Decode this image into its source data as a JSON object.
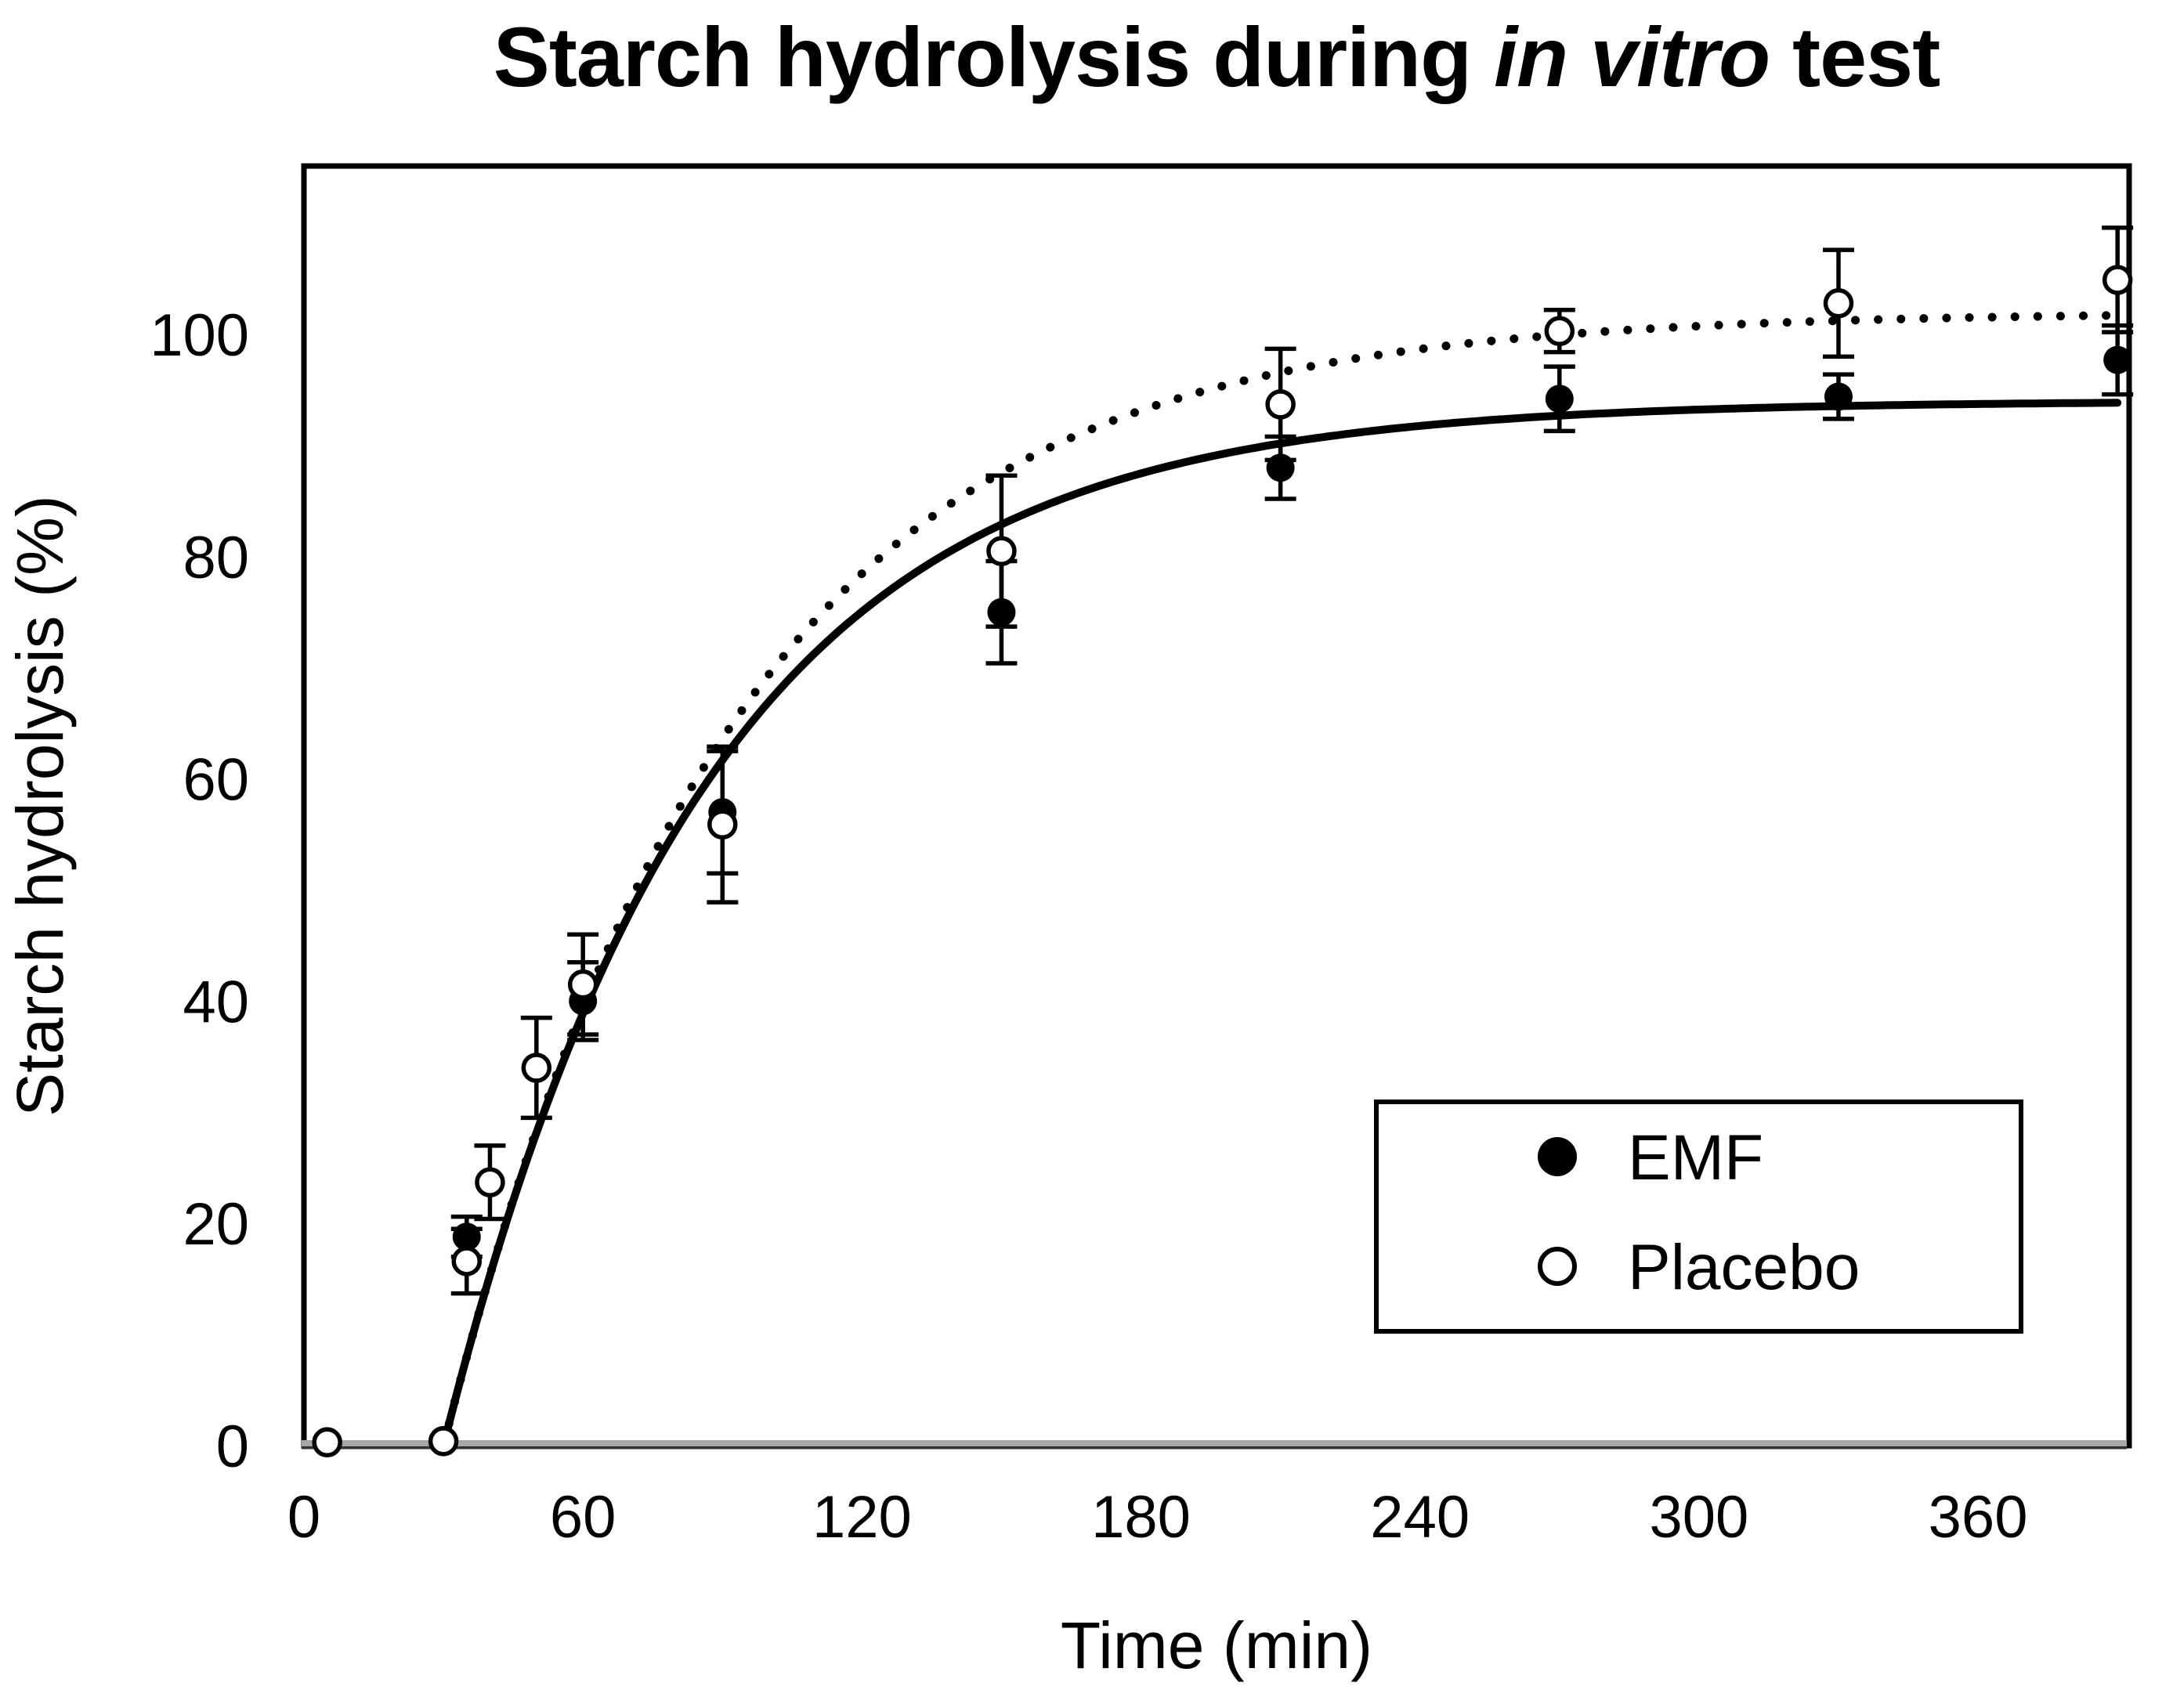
{
  "chart_data": {
    "type": "scatter",
    "title_parts": {
      "pre": "Starch hydrolysis during ",
      "italic": "in vitro",
      "post": " test"
    },
    "xlabel": "Time (min)",
    "ylabel": "Starch hydrolysis (%)",
    "xlim": [
      0,
      392.5
    ],
    "ylim": [
      0,
      115.15
    ],
    "xticks": [
      0,
      60,
      120,
      180,
      240,
      300,
      360
    ],
    "yticks": [
      0,
      20,
      40,
      60,
      80,
      100
    ],
    "grid": false,
    "legend_position": "lower right",
    "x_minutes": [
      5,
      30,
      35,
      40,
      50,
      60,
      90,
      150,
      210,
      270,
      330,
      390
    ],
    "series": [
      {
        "name": "EMF",
        "marker": "filled-circle",
        "line_style": "solid",
        "y": [
          0.4,
          0.5,
          18.8,
          23.7,
          34,
          40,
          57,
          75,
          88,
          94.2,
          94.4,
          97.7
        ],
        "yerr": [
          0,
          0,
          1.8,
          0,
          0,
          3.5,
          5.5,
          4.6,
          2.8,
          2.9,
          2,
          3.1
        ],
        "fit": {
          "model": "C*(1-exp(-k*(t-t0)))",
          "C": 94,
          "k": 0.0178,
          "t0": 30,
          "t_end": 391
        }
      },
      {
        "name": "Placebo",
        "marker": "open-circle",
        "line_style": "dotted",
        "y": [
          0.3,
          0.4,
          16.6,
          23.7,
          34,
          41.5,
          55.9,
          80.5,
          93.7,
          100.3,
          102.8,
          104.9
        ],
        "yerr": [
          0,
          0,
          2.9,
          3.3,
          4.5,
          4.5,
          7,
          6.8,
          5,
          1.9,
          4.8,
          4.7
        ],
        "fit": {
          "model": "C*(1-exp(-k*(t-t0)))",
          "C": 102,
          "k": 0.0163,
          "t0": 30,
          "t_end": 389
        }
      }
    ],
    "legend": {
      "items": [
        {
          "label": "EMF"
        },
        {
          "label": "Placebo"
        }
      ]
    },
    "colors": {
      "series": "#000000",
      "plot_border": "#000000",
      "x_axis_line": "#a6a6a6",
      "x_axis_edge": "#3a3a3a",
      "background": "#ffffff",
      "text": "#000000"
    }
  }
}
